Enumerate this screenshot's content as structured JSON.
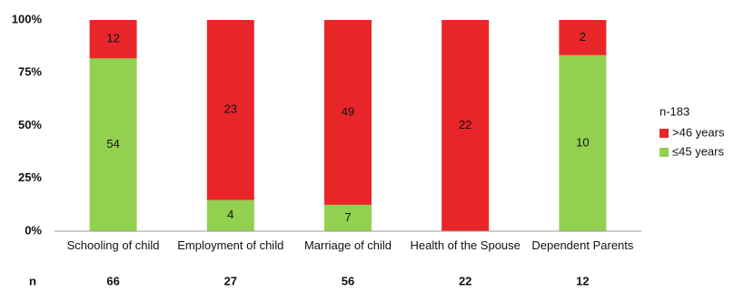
{
  "chart_data": {
    "type": "bar",
    "stacked": "percent",
    "categories": [
      "Schooling of child",
      "Employment of child",
      "Marriage of child",
      "Health of the Spouse",
      "Dependent Parents"
    ],
    "series": [
      {
        "name": "≤45 years",
        "color": "#92d050",
        "values": [
          54,
          4,
          7,
          0,
          10
        ]
      },
      {
        "name": ">46 years",
        "color": "#e8262a",
        "values": [
          12,
          23,
          49,
          22,
          2
        ]
      }
    ],
    "ylim": [
      0,
      100
    ],
    "yticks": [
      {
        "value": 0,
        "label": "0%"
      },
      {
        "value": 25,
        "label": "25%"
      },
      {
        "value": 50,
        "label": "50%"
      },
      {
        "value": 75,
        "label": "75%"
      },
      {
        "value": 100,
        "label": "100%"
      }
    ],
    "legend_title": "n-183",
    "legend": "right",
    "n_label": "n",
    "n_values": [
      66,
      27,
      56,
      22,
      12
    ]
  }
}
